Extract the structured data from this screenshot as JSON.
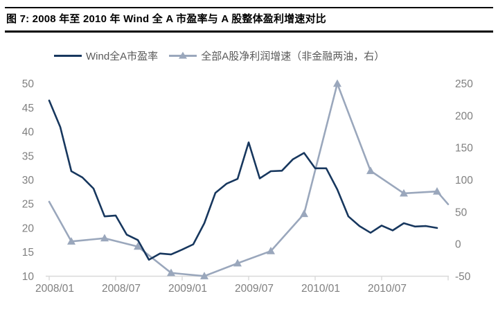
{
  "figure": {
    "title": "图 7: 2008 年至 2010 年 Wind 全 A 市盈率与 A 股整体盈利增速对比"
  },
  "colors": {
    "pe_line": "#17375e",
    "growth_line": "#9aa7bc",
    "axis_text": "#7f7f7f",
    "axis_line": "#d9d9d9",
    "legend_text": "#595959",
    "title_text": "#000000",
    "rule": "#000000",
    "background": "#ffffff"
  },
  "chart_data": {
    "type": "line",
    "title": "2008 年至 2010 年 Wind 全 A 市盈率与 A 股整体盈利增速对比",
    "grid": false,
    "legend_position": "top",
    "x_axis": {
      "tick_labels": [
        "2008/01",
        "2008/07",
        "2009/01",
        "2009/07",
        "2010/01",
        "2010/07"
      ],
      "tick_months": [
        0,
        6,
        12,
        18,
        24,
        30,
        36
      ],
      "range": [
        "2008/01",
        "2010/12"
      ]
    },
    "left_axis": {
      "ticks": [
        50,
        45,
        40,
        35,
        30,
        25,
        20,
        15,
        10
      ],
      "min": 10,
      "max": 50,
      "series": "Wind全A市盈率"
    },
    "right_axis": {
      "ticks": [
        250,
        200,
        150,
        100,
        50,
        0,
        -50
      ],
      "min": -50,
      "max": 250,
      "series": "全部A股净利润增速（非金融两油，右）"
    },
    "series": [
      {
        "name": "Wind全A市盈率",
        "axis": "left",
        "color": "#17375e",
        "marker": "none",
        "interval": "monthly",
        "months": [
          "2008/01",
          "2008/02",
          "2008/03",
          "2008/04",
          "2008/05",
          "2008/06",
          "2008/07",
          "2008/08",
          "2008/09",
          "2008/10",
          "2008/11",
          "2008/12",
          "2009/01",
          "2009/02",
          "2009/03",
          "2009/04",
          "2009/05",
          "2009/06",
          "2009/07",
          "2009/08",
          "2009/09",
          "2009/10",
          "2009/11",
          "2009/12",
          "2010/01",
          "2010/02",
          "2010/03",
          "2010/04",
          "2010/05",
          "2010/06",
          "2010/07",
          "2010/08",
          "2010/09",
          "2010/10",
          "2010/11",
          "2010/12"
        ],
        "values": [
          46.5,
          41.0,
          31.8,
          30.5,
          28.2,
          22.4,
          22.6,
          18.6,
          17.5,
          13.4,
          14.7,
          14.5,
          15.5,
          16.6,
          21.0,
          27.3,
          29.2,
          30.2,
          37.8,
          30.3,
          31.8,
          31.9,
          34.3,
          35.6,
          32.4,
          32.4,
          28.0,
          22.4,
          20.4,
          19.0,
          20.5,
          19.5,
          21.0,
          20.3,
          20.4,
          20.0
        ]
      },
      {
        "name": "全部A股净利润增速（非金融两油，右）",
        "axis": "right",
        "color": "#9aa7bc",
        "marker": "triangle",
        "interval": "quarterly",
        "points": [
          {
            "month": "2008/01",
            "m": 0,
            "value": 66,
            "marker": false
          },
          {
            "month": "2008/03",
            "m": 2,
            "value": 4,
            "marker": true
          },
          {
            "month": "2008/06",
            "m": 5,
            "value": 9,
            "marker": true
          },
          {
            "month": "2008/09",
            "m": 8,
            "value": -4,
            "marker": true
          },
          {
            "month": "2008/12",
            "m": 11,
            "value": -45,
            "marker": true
          },
          {
            "month": "2009/03",
            "m": 14,
            "value": -50,
            "marker": true
          },
          {
            "month": "2009/06",
            "m": 17,
            "value": -30,
            "marker": true
          },
          {
            "month": "2009/09",
            "m": 20,
            "value": -11,
            "marker": true
          },
          {
            "month": "2009/12",
            "m": 23,
            "value": 47,
            "marker": true
          },
          {
            "month": "2010/03",
            "m": 26,
            "value": 250,
            "marker": true
          },
          {
            "month": "2010/06",
            "m": 29,
            "value": 114,
            "marker": true
          },
          {
            "month": "2010/09",
            "m": 32,
            "value": 79,
            "marker": true
          },
          {
            "month": "2010/12",
            "m": 35,
            "value": 82,
            "marker": true
          },
          {
            "month": "2011/01",
            "m": 36,
            "value": 62,
            "marker": false
          }
        ]
      }
    ]
  }
}
